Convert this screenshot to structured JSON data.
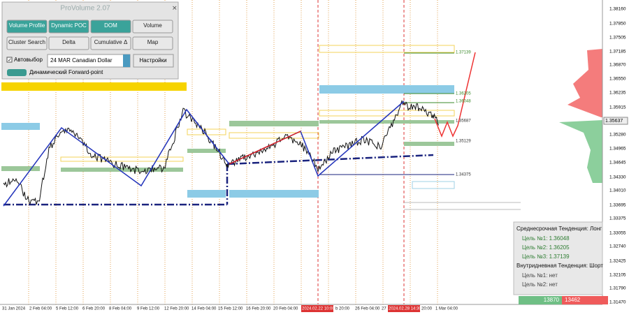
{
  "panel": {
    "title": "ProVolume 2.07",
    "buttons": [
      "Volume Profile",
      "Dynamic POC",
      "DOM",
      "Volume",
      "Cluster Search",
      "Delta",
      "Cumulative Δ",
      "Map"
    ],
    "auto_select": "Автовыбор",
    "instrument": "24 MAR Canadian Dollar",
    "settings": "Настройки",
    "forward_point": "Динамический Forward-point"
  },
  "price_axis": [
    "1.38160",
    "1.37850",
    "1.37505",
    "1.37185",
    "1.36870",
    "1.36550",
    "1.36235",
    "1.35915",
    "1.35280",
    "1.34965",
    "1.34645",
    "1.34330",
    "1.34010",
    "1.33695",
    "1.33375",
    "1.33055",
    "1.32740",
    "1.32425",
    "1.32105",
    "1.31790",
    "1.31470"
  ],
  "current_price": "1.35637",
  "time_axis": [
    "31 Jan 2024",
    "2 Feb 04:00",
    "5 Feb 12:00",
    "6 Feb 20:00",
    "8 Feb 04:00",
    "9 Feb 12:00",
    "12 Feb 20:00",
    "14 Feb 04:00",
    "15 Feb 12:00",
    "16 Feb 20:00",
    "20 Feb 04:00",
    "2024.02.22 10:00",
    "b 20:00",
    "26 Feb 04:00",
    "27",
    "2024.02.28 14:30",
    "20:00",
    "1 Mar 04:00"
  ],
  "levels": [
    "1.37139",
    "1.36205",
    "1.36048",
    "1.35687",
    "1.35129",
    "1.34375"
  ],
  "info": {
    "mid_trend": "Среднесрочная Тенденция: Лонг",
    "mid_targets": [
      "Цель №1:  1.36048",
      "Цель №2:  1.36205",
      "Цель №3:  1.37139"
    ],
    "intraday_trend": "Внутридневная Тенденция: Шорт",
    "intraday_targets": [
      "Цель №1:  нет",
      "Цель №2:  нет"
    ]
  },
  "volumes": {
    "buy": "13870",
    "sell": "13462"
  }
}
